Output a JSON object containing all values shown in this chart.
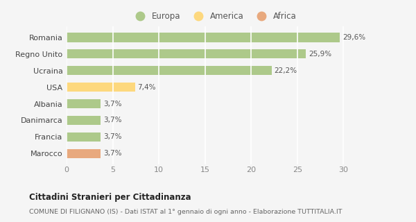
{
  "categories": [
    "Marocco",
    "Francia",
    "Danimarca",
    "Albania",
    "USA",
    "Ucraina",
    "Regno Unito",
    "Romania"
  ],
  "values": [
    3.7,
    3.7,
    3.7,
    3.7,
    7.4,
    22.2,
    25.9,
    29.6
  ],
  "labels": [
    "3,7%",
    "3,7%",
    "3,7%",
    "3,7%",
    "7,4%",
    "22,2%",
    "25,9%",
    "29,6%"
  ],
  "colors": [
    "#e8a97e",
    "#adc98a",
    "#adc98a",
    "#adc98a",
    "#fdd87e",
    "#adc98a",
    "#adc98a",
    "#adc98a"
  ],
  "legend_items": [
    {
      "label": "Europa",
      "color": "#adc98a"
    },
    {
      "label": "America",
      "color": "#fdd87e"
    },
    {
      "label": "Africa",
      "color": "#e8a97e"
    }
  ],
  "xlim": [
    0,
    32
  ],
  "xticks": [
    0,
    5,
    10,
    15,
    20,
    25,
    30
  ],
  "title_bold": "Cittadini Stranieri per Cittadinanza",
  "subtitle": "COMUNE DI FILIGNANO (IS) - Dati ISTAT al 1° gennaio di ogni anno - Elaborazione TUTTITALIA.IT",
  "background_color": "#f5f5f5",
  "grid_color": "#ffffff",
  "bar_height": 0.55,
  "label_fontsize": 7.5,
  "tick_fontsize": 8
}
